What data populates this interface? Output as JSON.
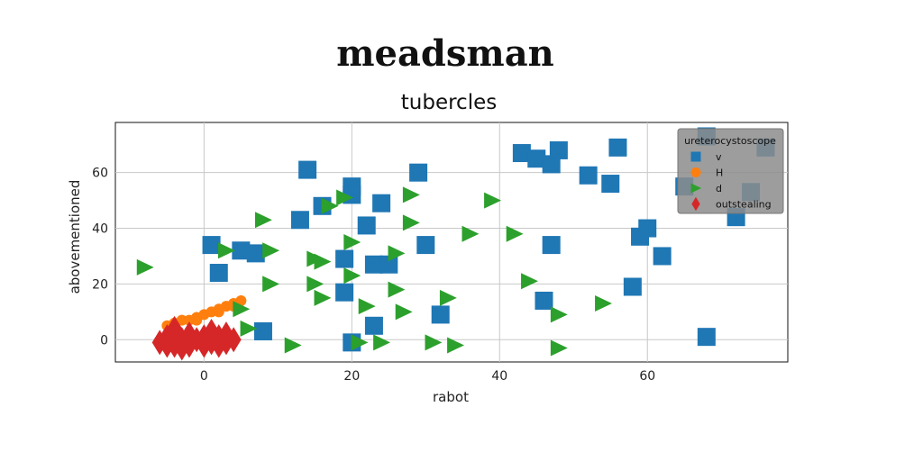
{
  "chart_data": {
    "type": "scatter",
    "title": "meadsman",
    "subtitle": "tubercles",
    "xlabel": "rabot",
    "ylabel": "abovementioned",
    "xlim": [
      -12,
      79
    ],
    "ylim": [
      -8,
      78
    ],
    "xticks": [
      0,
      20,
      40,
      60
    ],
    "yticks": [
      0,
      20,
      40,
      60
    ],
    "grid": true,
    "legend": {
      "title": "ureterocystoscope",
      "placement": "top-right"
    },
    "series": [
      {
        "name": "v",
        "marker": "square",
        "color": "#1f77b4",
        "points": [
          [
            1,
            34
          ],
          [
            2,
            24
          ],
          [
            5,
            32
          ],
          [
            7,
            31
          ],
          [
            8,
            3
          ],
          [
            13,
            43
          ],
          [
            14,
            61
          ],
          [
            16,
            48
          ],
          [
            19,
            29
          ],
          [
            19,
            17
          ],
          [
            20,
            55
          ],
          [
            20,
            52
          ],
          [
            22,
            41
          ],
          [
            23,
            27
          ],
          [
            24,
            49
          ],
          [
            25,
            27
          ],
          [
            23,
            5
          ],
          [
            20,
            -1
          ],
          [
            29,
            60
          ],
          [
            30,
            34
          ],
          [
            32,
            9
          ],
          [
            43,
            67
          ],
          [
            45,
            65
          ],
          [
            47,
            63
          ],
          [
            48,
            68
          ],
          [
            47,
            34
          ],
          [
            46,
            14
          ],
          [
            52,
            59
          ],
          [
            55,
            56
          ],
          [
            56,
            69
          ],
          [
            58,
            19
          ],
          [
            59,
            37
          ],
          [
            60,
            40
          ],
          [
            62,
            30
          ],
          [
            65,
            55
          ],
          [
            68,
            1
          ],
          [
            68,
            73
          ],
          [
            72,
            44
          ],
          [
            74,
            53
          ],
          [
            76,
            69
          ]
        ]
      },
      {
        "name": "H",
        "marker": "circle",
        "color": "#ff7f0e",
        "points": [
          [
            -5,
            5
          ],
          [
            -4,
            6
          ],
          [
            -3,
            7
          ],
          [
            -2,
            7
          ],
          [
            -1,
            8
          ],
          [
            0,
            9
          ],
          [
            1,
            10
          ],
          [
            2,
            11
          ],
          [
            3,
            12
          ],
          [
            4,
            13
          ],
          [
            5,
            14
          ],
          [
            -4,
            5
          ],
          [
            -1,
            7
          ],
          [
            2,
            10
          ],
          [
            4,
            12
          ]
        ]
      },
      {
        "name": "d",
        "marker": "triangle-right",
        "color": "#2ca02c",
        "points": [
          [
            -8,
            26
          ],
          [
            3,
            32
          ],
          [
            5,
            11
          ],
          [
            6,
            4
          ],
          [
            8,
            43
          ],
          [
            9,
            32
          ],
          [
            9,
            20
          ],
          [
            12,
            -2
          ],
          [
            15,
            29
          ],
          [
            15,
            20
          ],
          [
            16,
            28
          ],
          [
            16,
            15
          ],
          [
            17,
            48
          ],
          [
            19,
            51
          ],
          [
            20,
            35
          ],
          [
            20,
            23
          ],
          [
            21,
            -1
          ],
          [
            22,
            12
          ],
          [
            24,
            -1
          ],
          [
            26,
            31
          ],
          [
            26,
            18
          ],
          [
            27,
            10
          ],
          [
            28,
            52
          ],
          [
            28,
            42
          ],
          [
            31,
            -1
          ],
          [
            33,
            15
          ],
          [
            34,
            -2
          ],
          [
            36,
            38
          ],
          [
            39,
            50
          ],
          [
            42,
            38
          ],
          [
            44,
            21
          ],
          [
            48,
            9
          ],
          [
            48,
            -3
          ],
          [
            54,
            13
          ]
        ]
      },
      {
        "name": "outstealing",
        "marker": "diamond",
        "color": "#d62728",
        "points": [
          [
            -6,
            -1
          ],
          [
            -5,
            1
          ],
          [
            -4,
            -2
          ],
          [
            -4,
            4
          ],
          [
            -3,
            0
          ],
          [
            -2,
            2
          ],
          [
            -2,
            -2
          ],
          [
            -1,
            0
          ],
          [
            0,
            1
          ],
          [
            0,
            -2
          ],
          [
            1,
            3
          ],
          [
            1,
            -1
          ],
          [
            2,
            1
          ],
          [
            2,
            -2
          ],
          [
            3,
            2
          ],
          [
            3,
            -1
          ],
          [
            4,
            0
          ],
          [
            -3,
            -3
          ],
          [
            -5,
            -2
          ]
        ]
      }
    ]
  }
}
